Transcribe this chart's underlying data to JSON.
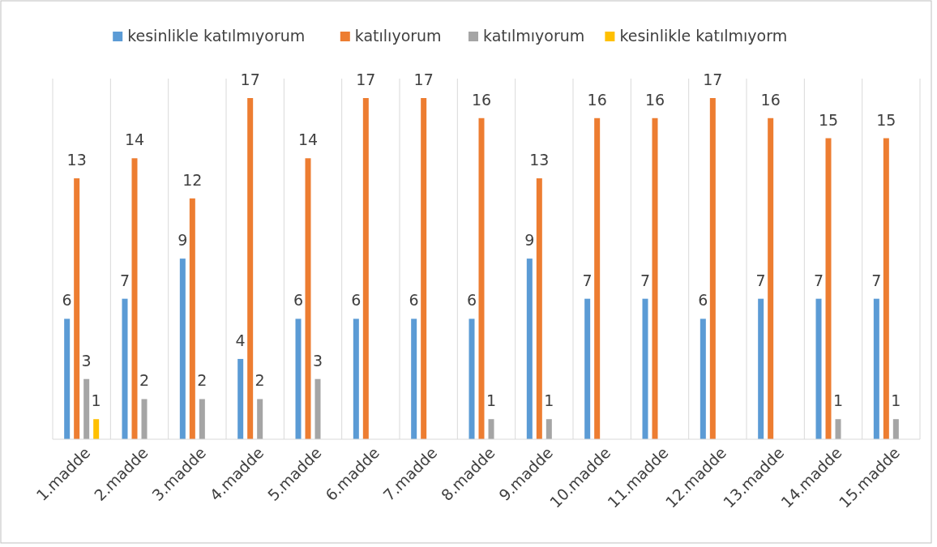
{
  "chart_data": {
    "type": "bar",
    "categories": [
      "1.madde",
      "2.madde",
      "3.madde",
      "4.madde",
      "5.madde",
      "6.madde",
      "7.madde",
      "8.madde",
      "9.madde",
      "10.madde",
      "11.madde",
      "12.madde",
      "13.madde",
      "14.madde",
      "15.madde"
    ],
    "series": [
      {
        "name": "kesinlikle katılmıyorum",
        "color": "#5b9bd5",
        "values": [
          6,
          7,
          9,
          4,
          6,
          6,
          6,
          6,
          9,
          7,
          7,
          6,
          7,
          7,
          7
        ]
      },
      {
        "name": "katılıyorum",
        "color": "#ed7d31",
        "values": [
          13,
          14,
          12,
          17,
          14,
          17,
          17,
          16,
          13,
          16,
          16,
          17,
          16,
          15,
          15
        ]
      },
      {
        "name": "katılmıyorum",
        "color": "#a5a5a5",
        "values": [
          3,
          2,
          2,
          2,
          3,
          null,
          null,
          1,
          1,
          null,
          null,
          null,
          null,
          1,
          1
        ]
      },
      {
        "name": "kesinlikle katılmıyorm",
        "color": "#ffc000",
        "values": [
          1,
          null,
          null,
          null,
          null,
          null,
          null,
          null,
          null,
          null,
          null,
          null,
          null,
          null,
          null
        ]
      }
    ],
    "data_labels": true,
    "grid": "x",
    "legend": "top"
  }
}
